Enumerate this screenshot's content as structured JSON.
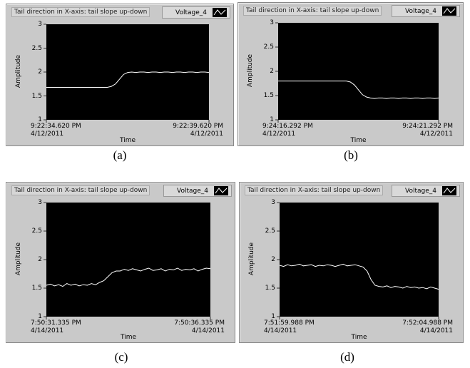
{
  "chart_data": [
    {
      "type": "line",
      "title": "Tail direction in X-axis: tail slope up-down",
      "caption": "(a)",
      "y_label": "Amplitude",
      "x_label": "Time",
      "ylim": [
        1,
        3
      ],
      "yticks": [
        1,
        1.5,
        2,
        2.5,
        3
      ],
      "xlim": [
        0,
        40
      ],
      "xticks": [
        {
          "value": 0,
          "label": "9:22:34.620 PM\n4/12/2011"
        },
        {
          "value": 40,
          "label": "9:22:39.620 PM\n4/12/2011"
        }
      ],
      "series": [
        {
          "name": "Voltage_4",
          "color": "#ffffff",
          "values": [
            1.68,
            1.68,
            1.68,
            1.68,
            1.68,
            1.68,
            1.68,
            1.68,
            1.68,
            1.68,
            1.68,
            1.68,
            1.68,
            1.68,
            1.68,
            1.68,
            1.7,
            1.75,
            1.85,
            1.95,
            1.99,
            2.0,
            1.99,
            2.0,
            2.0,
            1.99,
            2.0,
            2.0,
            1.99,
            2.0,
            2.0,
            1.99,
            2.0,
            2.0,
            1.99,
            2.0,
            2.0,
            1.99,
            2.0,
            2.0,
            1.99
          ]
        }
      ]
    },
    {
      "type": "line",
      "title": "Tail direction in X-axis: tail slope up-down",
      "caption": "(b)",
      "y_label": "Amplitude",
      "x_label": "Time",
      "ylim": [
        1,
        3
      ],
      "yticks": [
        1,
        1.5,
        2,
        2.5,
        3
      ],
      "xlim": [
        0,
        40
      ],
      "xticks": [
        {
          "value": 0,
          "label": "9:24:16.292 PM\n4/12/2011"
        },
        {
          "value": 40,
          "label": "9:24:21.292 PM\n4/12/2011"
        }
      ],
      "series": [
        {
          "name": "Voltage_4",
          "color": "#ffffff",
          "values": [
            1.8,
            1.8,
            1.8,
            1.8,
            1.8,
            1.8,
            1.8,
            1.8,
            1.8,
            1.8,
            1.8,
            1.8,
            1.8,
            1.8,
            1.8,
            1.8,
            1.8,
            1.8,
            1.78,
            1.72,
            1.62,
            1.52,
            1.47,
            1.45,
            1.44,
            1.45,
            1.45,
            1.44,
            1.45,
            1.45,
            1.44,
            1.45,
            1.45,
            1.44,
            1.45,
            1.45,
            1.44,
            1.45,
            1.45,
            1.44,
            1.45
          ]
        }
      ]
    },
    {
      "type": "line",
      "title": "Tail direction in X-axis: tail slope up-down",
      "caption": "(c)",
      "y_label": "Amplitude",
      "x_label": "Time",
      "ylim": [
        1,
        3
      ],
      "yticks": [
        1,
        1.5,
        2,
        2.5,
        3
      ],
      "xlim": [
        0,
        40
      ],
      "xticks": [
        {
          "value": 0,
          "label": "7:50:31.335 PM\n4/14/2011"
        },
        {
          "value": 40,
          "label": "7:50:36.335 PM\n4/14/2011"
        }
      ],
      "series": [
        {
          "name": "Voltage_4",
          "color": "#ffffff",
          "values": [
            1.55,
            1.57,
            1.54,
            1.56,
            1.53,
            1.58,
            1.55,
            1.57,
            1.54,
            1.56,
            1.55,
            1.58,
            1.56,
            1.6,
            1.63,
            1.7,
            1.77,
            1.8,
            1.8,
            1.83,
            1.81,
            1.84,
            1.82,
            1.8,
            1.83,
            1.85,
            1.81,
            1.82,
            1.84,
            1.8,
            1.83,
            1.82,
            1.85,
            1.81,
            1.83,
            1.82,
            1.84,
            1.8,
            1.83,
            1.85,
            1.84
          ]
        }
      ]
    },
    {
      "type": "line",
      "title": "Tail direction in X-axis: tail slope up-down",
      "caption": "(d)",
      "y_label": "Amplitude",
      "x_label": "Time",
      "ylim": [
        1,
        3
      ],
      "yticks": [
        1,
        1.5,
        2,
        2.5,
        3
      ],
      "xlim": [
        0,
        40
      ],
      "xticks": [
        {
          "value": 0,
          "label": "7:51:59.988 PM\n4/14/2011"
        },
        {
          "value": 40,
          "label": "7:52:04.988 PM\n4/14/2011"
        }
      ],
      "series": [
        {
          "name": "Voltage_4",
          "color": "#ffffff",
          "values": [
            1.9,
            1.88,
            1.91,
            1.89,
            1.9,
            1.92,
            1.89,
            1.9,
            1.91,
            1.88,
            1.9,
            1.89,
            1.91,
            1.9,
            1.88,
            1.9,
            1.92,
            1.89,
            1.9,
            1.91,
            1.89,
            1.87,
            1.8,
            1.65,
            1.55,
            1.53,
            1.52,
            1.54,
            1.51,
            1.53,
            1.52,
            1.5,
            1.53,
            1.51,
            1.52,
            1.5,
            1.51,
            1.49,
            1.52,
            1.5,
            1.48
          ]
        }
      ]
    }
  ]
}
